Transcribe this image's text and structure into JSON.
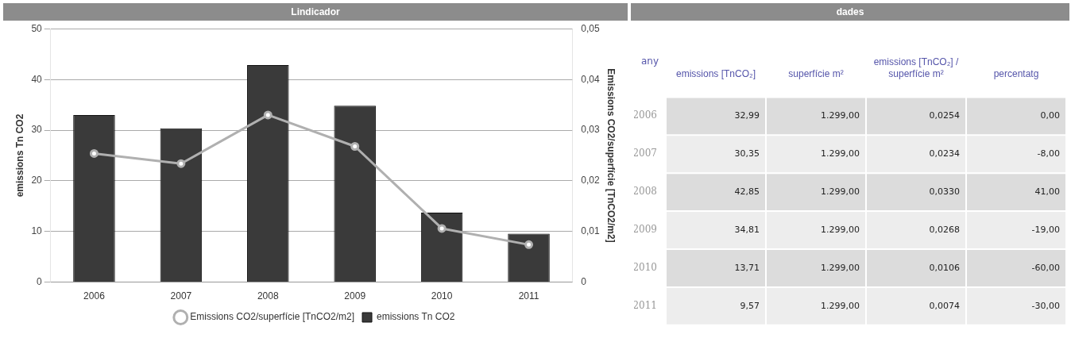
{
  "chart_data": [
    {
      "type": "bar",
      "title": "Lindicador",
      "categories": [
        "2006",
        "2007",
        "2008",
        "2009",
        "2010",
        "2011"
      ],
      "series": [
        {
          "name": "emissions Tn CO2",
          "type": "bar",
          "color": "#3a3a3a",
          "values": [
            32.99,
            30.35,
            42.85,
            34.81,
            13.71,
            9.57
          ]
        },
        {
          "name": "Emissions CO2/superfície [TnCO2/m2]",
          "type": "line",
          "axis": "y2",
          "color": "#b0b0b0",
          "values": [
            0.0254,
            0.0234,
            0.033,
            0.0268,
            0.0106,
            0.0074
          ]
        }
      ],
      "ylabel": "emissions Tn CO2",
      "y2label": "Emissions CO2/superfície [TnCO2/m2]",
      "ylim": [
        0,
        50
      ],
      "yticks": [
        0,
        10,
        20,
        30,
        40,
        50
      ],
      "y2lim": [
        0,
        0.05
      ],
      "y2ticks": [
        {
          "value": 0,
          "label": "0"
        },
        {
          "value": 0.01,
          "label": "0,01"
        },
        {
          "value": 0.02,
          "label": "0,02"
        },
        {
          "value": 0.03,
          "label": "0,03"
        },
        {
          "value": 0.04,
          "label": "0,04"
        },
        {
          "value": 0.05,
          "label": "0,05"
        }
      ],
      "grid": "y",
      "legend": "bottom",
      "marker": "circle"
    },
    {
      "type": "heatmap",
      "title": "dades",
      "ylabel": "any",
      "categories": [
        "emissions [TnCO₂]",
        "superfície m²",
        "emissions [TnCO₂] / superfície m²",
        "percentatg"
      ],
      "y_categories": [
        "2006",
        "2007",
        "2008",
        "2009",
        "2010",
        "2011"
      ],
      "cells": [
        [
          32.99,
          1299.0,
          0.0254,
          0.0
        ],
        [
          30.35,
          1299.0,
          0.0234,
          -8.0
        ],
        [
          42.85,
          1299.0,
          0.033,
          41.0
        ],
        [
          34.81,
          1299.0,
          0.0268,
          -19.0
        ],
        [
          13.71,
          1299.0,
          0.0106,
          -60.0
        ],
        [
          9.57,
          1299.0,
          0.0074,
          -30.0
        ]
      ],
      "cell_labels": [
        [
          "32,99",
          "1.299,00",
          "0,0254",
          "0,00"
        ],
        [
          "30,35",
          "1.299,00",
          "0,0234",
          "-8,00"
        ],
        [
          "42,85",
          "1.299,00",
          "0,0330",
          "41,00"
        ],
        [
          "34,81",
          "1.299,00",
          "0,0268",
          "-19,00"
        ],
        [
          "13,71",
          "1.299,00",
          "0,0106",
          "-60,00"
        ],
        [
          "9,57",
          "1.299,00",
          "0,0074",
          "-30,00"
        ]
      ]
    }
  ]
}
